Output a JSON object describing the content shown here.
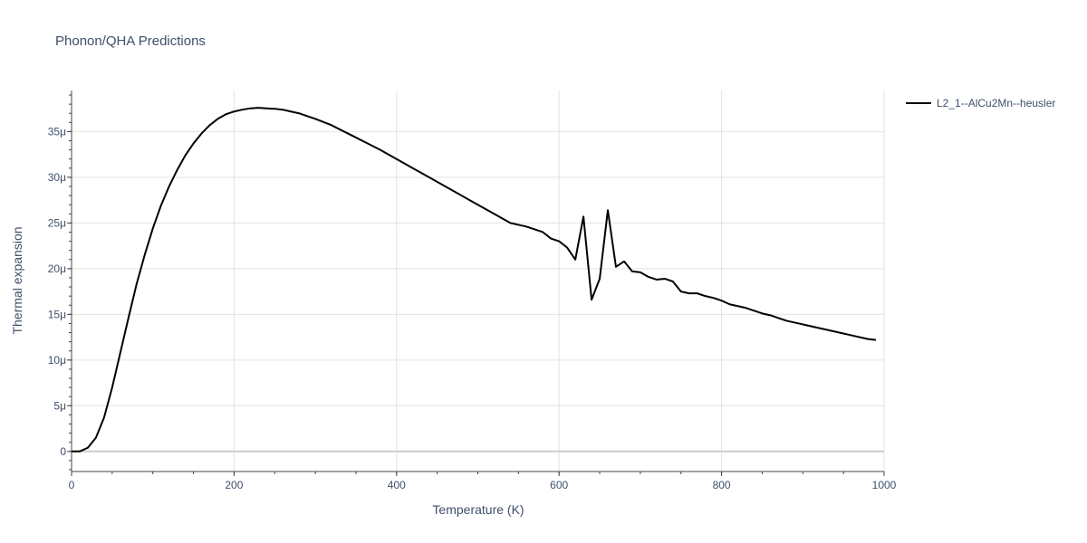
{
  "chart_data": {
    "type": "line",
    "title": "Phonon/QHA Predictions",
    "xlabel": "Temperature (K)",
    "ylabel": "Thermal expansion",
    "xlim": [
      0,
      1000
    ],
    "ylim": [
      -2.2e-06,
      3.95e-05
    ],
    "xticks": [
      0,
      200,
      400,
      600,
      800,
      1000
    ],
    "xtick_labels": [
      "0",
      "200",
      "400",
      "600",
      "800",
      "1000"
    ],
    "yticks": [
      0,
      5e-06,
      1e-05,
      1.5e-05,
      2e-05,
      2.5e-05,
      3e-05,
      3.5e-05
    ],
    "ytick_labels": [
      "0",
      "5μ",
      "10μ",
      "15μ",
      "20μ",
      "25μ",
      "30μ",
      "35μ"
    ],
    "grid": true,
    "legend_position": "top-right",
    "line_color": "#000000",
    "series": [
      {
        "name": "L2_1--AlCu2Mn--heusler",
        "x": [
          0,
          10,
          20,
          30,
          40,
          50,
          60,
          70,
          80,
          90,
          100,
          110,
          120,
          130,
          140,
          150,
          160,
          170,
          180,
          190,
          200,
          210,
          220,
          230,
          240,
          250,
          260,
          270,
          280,
          290,
          300,
          320,
          340,
          360,
          380,
          400,
          420,
          440,
          460,
          480,
          500,
          520,
          540,
          560,
          570,
          580,
          590,
          600,
          610,
          620,
          630,
          640,
          650,
          660,
          670,
          680,
          690,
          700,
          710,
          720,
          730,
          740,
          750,
          760,
          770,
          780,
          790,
          800,
          810,
          820,
          830,
          840,
          850,
          860,
          870,
          880,
          890,
          900,
          920,
          940,
          960,
          980,
          990
        ],
        "y": [
          0,
          0,
          4e-07,
          1.5e-06,
          3.7e-06,
          7e-06,
          1.08e-05,
          1.46e-05,
          1.83e-05,
          2.15e-05,
          2.44e-05,
          2.69e-05,
          2.9e-05,
          3.08e-05,
          3.24e-05,
          3.37e-05,
          3.48e-05,
          3.57e-05,
          3.64e-05,
          3.69e-05,
          3.72e-05,
          3.74e-05,
          3.755e-05,
          3.76e-05,
          3.755e-05,
          3.75e-05,
          3.74e-05,
          3.72e-05,
          3.7e-05,
          3.67e-05,
          3.64e-05,
          3.57e-05,
          3.48e-05,
          3.39e-05,
          3.3e-05,
          3.2e-05,
          3.1e-05,
          3e-05,
          2.9e-05,
          2.8e-05,
          2.7e-05,
          2.6e-05,
          2.5e-05,
          2.46e-05,
          2.43e-05,
          2.4e-05,
          2.33e-05,
          2.3e-05,
          2.23e-05,
          2.1e-05,
          2.57e-05,
          1.66e-05,
          1.89e-05,
          2.64e-05,
          2.02e-05,
          2.08e-05,
          1.97e-05,
          1.96e-05,
          1.91e-05,
          1.88e-05,
          1.89e-05,
          1.86e-05,
          1.75e-05,
          1.73e-05,
          1.73e-05,
          1.7e-05,
          1.68e-05,
          1.65e-05,
          1.61e-05,
          1.59e-05,
          1.57e-05,
          1.54e-05,
          1.51e-05,
          1.49e-05,
          1.46e-05,
          1.43e-05,
          1.41e-05,
          1.39e-05,
          1.35e-05,
          1.31e-05,
          1.27e-05,
          1.23e-05,
          1.22e-05
        ]
      }
    ]
  }
}
